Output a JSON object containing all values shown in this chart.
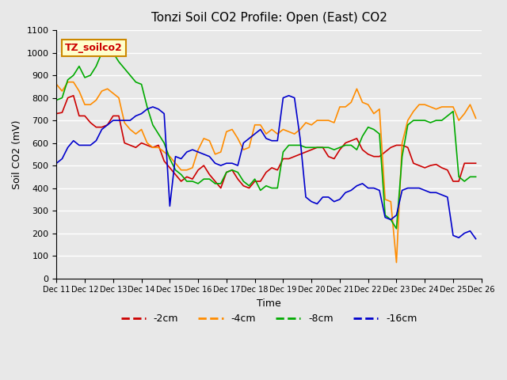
{
  "title": "Tonzi Soil CO2 Profile: Open (East) CO2",
  "xlabel": "Time",
  "ylabel": "Soil CO2 (mV)",
  "ylim": [
    0,
    1100
  ],
  "xlim": [
    0,
    15
  ],
  "xtick_labels": [
    "Dec 11",
    "Dec 12",
    "Dec 13",
    "Dec 14",
    "Dec 15",
    "Dec 16",
    "Dec 17",
    "Dec 18",
    "Dec 19",
    "Dec 20",
    "Dec 21",
    "Dec 22",
    "Dec 23",
    "Dec 24",
    "Dec 25",
    "Dec 26"
  ],
  "ytick_labels": [
    "0",
    "100",
    "200",
    "300",
    "400",
    "500",
    "600",
    "700",
    "800",
    "900",
    "1000",
    "1100"
  ],
  "background_color": "#e8e8e8",
  "plot_bg_color": "#e8e8e8",
  "grid_color": "#ffffff",
  "legend_label": "TZ_soilco2",
  "series": {
    "-2cm": {
      "color": "#cc0000",
      "x": [
        0,
        0.2,
        0.4,
        0.6,
        0.8,
        1.0,
        1.2,
        1.4,
        1.6,
        1.8,
        2.0,
        2.2,
        2.4,
        2.6,
        2.8,
        3.0,
        3.2,
        3.4,
        3.6,
        3.8,
        4.0,
        4.2,
        4.4,
        4.6,
        4.8,
        5.0,
        5.2,
        5.4,
        5.6,
        5.8,
        6.0,
        6.2,
        6.4,
        6.6,
        6.8,
        7.0,
        7.2,
        7.4,
        7.6,
        7.8,
        8.0,
        8.2,
        8.4,
        8.6,
        8.8,
        9.0,
        9.2,
        9.4,
        9.6,
        9.8,
        10.0,
        10.2,
        10.4,
        10.6,
        10.8,
        11.0,
        11.2,
        11.4,
        11.6,
        11.8,
        12.0,
        12.2,
        12.4,
        12.6,
        12.8,
        13.0,
        13.2,
        13.4,
        13.6,
        13.8,
        14.0,
        14.2,
        14.4,
        14.6,
        14.8
      ],
      "y": [
        730,
        735,
        800,
        810,
        720,
        720,
        690,
        670,
        670,
        680,
        720,
        720,
        600,
        590,
        580,
        600,
        590,
        580,
        590,
        520,
        490,
        460,
        430,
        450,
        440,
        480,
        500,
        460,
        430,
        400,
        470,
        480,
        440,
        410,
        400,
        430,
        430,
        470,
        490,
        480,
        530,
        530,
        540,
        550,
        560,
        570,
        580,
        580,
        540,
        530,
        570,
        600,
        610,
        620,
        570,
        550,
        540,
        540,
        560,
        580,
        590,
        590,
        580,
        510,
        500,
        490,
        500,
        505,
        490,
        480,
        430,
        430,
        510,
        510,
        510
      ]
    },
    "-4cm": {
      "color": "#ff8c00",
      "x": [
        0,
        0.2,
        0.4,
        0.6,
        0.8,
        1.0,
        1.2,
        1.4,
        1.6,
        1.8,
        2.0,
        2.2,
        2.4,
        2.6,
        2.8,
        3.0,
        3.2,
        3.4,
        3.6,
        3.8,
        4.0,
        4.2,
        4.4,
        4.6,
        4.8,
        5.0,
        5.2,
        5.4,
        5.6,
        5.8,
        6.0,
        6.2,
        6.4,
        6.6,
        6.8,
        7.0,
        7.2,
        7.4,
        7.6,
        7.8,
        8.0,
        8.2,
        8.4,
        8.6,
        8.8,
        9.0,
        9.2,
        9.4,
        9.6,
        9.8,
        10.0,
        10.2,
        10.4,
        10.6,
        10.8,
        11.0,
        11.2,
        11.4,
        11.6,
        11.8,
        12.0,
        12.2,
        12.4,
        12.6,
        12.8,
        13.0,
        13.2,
        13.4,
        13.6,
        13.8,
        14.0,
        14.2,
        14.4,
        14.6,
        14.8
      ],
      "y": [
        860,
        830,
        870,
        870,
        830,
        770,
        770,
        790,
        830,
        840,
        820,
        800,
        690,
        660,
        640,
        660,
        600,
        580,
        580,
        560,
        540,
        510,
        480,
        480,
        490,
        570,
        620,
        610,
        550,
        560,
        650,
        660,
        620,
        570,
        580,
        680,
        680,
        640,
        660,
        640,
        660,
        650,
        640,
        660,
        690,
        680,
        700,
        700,
        700,
        690,
        760,
        760,
        780,
        840,
        780,
        770,
        730,
        750,
        350,
        340,
        70,
        600,
        700,
        740,
        770,
        770,
        760,
        750,
        760,
        760,
        760,
        700,
        730,
        770,
        710
      ]
    },
    "-8cm": {
      "color": "#00aa00",
      "x": [
        0,
        0.2,
        0.4,
        0.6,
        0.8,
        1.0,
        1.2,
        1.4,
        1.6,
        1.8,
        2.0,
        2.2,
        2.4,
        2.6,
        2.8,
        3.0,
        3.2,
        3.4,
        3.6,
        3.8,
        4.0,
        4.2,
        4.4,
        4.6,
        4.8,
        5.0,
        5.2,
        5.4,
        5.6,
        5.8,
        6.0,
        6.2,
        6.4,
        6.6,
        6.8,
        7.0,
        7.2,
        7.4,
        7.6,
        7.8,
        8.0,
        8.2,
        8.4,
        8.6,
        8.8,
        9.0,
        9.2,
        9.4,
        9.6,
        9.8,
        10.0,
        10.2,
        10.4,
        10.6,
        10.8,
        11.0,
        11.2,
        11.4,
        11.6,
        11.8,
        12.0,
        12.2,
        12.4,
        12.6,
        12.8,
        13.0,
        13.2,
        13.4,
        13.6,
        13.8,
        14.0,
        14.2,
        14.4,
        14.6,
        14.8
      ],
      "y": [
        790,
        800,
        880,
        900,
        940,
        890,
        900,
        940,
        1000,
        1020,
        1000,
        960,
        930,
        900,
        870,
        860,
        760,
        680,
        640,
        600,
        530,
        480,
        460,
        430,
        430,
        420,
        440,
        440,
        420,
        420,
        470,
        480,
        470,
        430,
        410,
        440,
        390,
        410,
        400,
        400,
        560,
        590,
        590,
        590,
        580,
        580,
        580,
        580,
        580,
        570,
        580,
        590,
        590,
        570,
        630,
        670,
        660,
        640,
        280,
        260,
        220,
        540,
        680,
        700,
        700,
        700,
        690,
        700,
        700,
        720,
        740,
        450,
        430,
        450,
        450
      ]
    },
    "-16cm": {
      "color": "#0000cc",
      "x": [
        0,
        0.2,
        0.4,
        0.6,
        0.8,
        1.0,
        1.2,
        1.4,
        1.6,
        1.8,
        2.0,
        2.2,
        2.4,
        2.6,
        2.8,
        3.0,
        3.2,
        3.4,
        3.6,
        3.8,
        4.0,
        4.2,
        4.4,
        4.6,
        4.8,
        5.0,
        5.2,
        5.4,
        5.6,
        5.8,
        6.0,
        6.2,
        6.4,
        6.6,
        6.8,
        7.0,
        7.2,
        7.4,
        7.6,
        7.8,
        8.0,
        8.2,
        8.4,
        8.6,
        8.8,
        9.0,
        9.2,
        9.4,
        9.6,
        9.8,
        10.0,
        10.2,
        10.4,
        10.6,
        10.8,
        11.0,
        11.2,
        11.4,
        11.6,
        11.8,
        12.0,
        12.2,
        12.4,
        12.6,
        12.8,
        13.0,
        13.2,
        13.4,
        13.6,
        13.8,
        14.0,
        14.2,
        14.4,
        14.6,
        14.8
      ],
      "y": [
        510,
        530,
        580,
        610,
        590,
        590,
        590,
        610,
        660,
        680,
        700,
        700,
        700,
        700,
        720,
        730,
        750,
        760,
        750,
        730,
        320,
        540,
        530,
        560,
        570,
        560,
        550,
        540,
        510,
        500,
        510,
        510,
        500,
        600,
        620,
        640,
        660,
        620,
        610,
        610,
        800,
        810,
        800,
        620,
        360,
        340,
        330,
        360,
        360,
        340,
        350,
        380,
        390,
        410,
        420,
        400,
        400,
        390,
        270,
        260,
        280,
        390,
        400,
        400,
        400,
        390,
        380,
        380,
        370,
        360,
        190,
        180,
        200,
        210,
        175
      ]
    }
  }
}
